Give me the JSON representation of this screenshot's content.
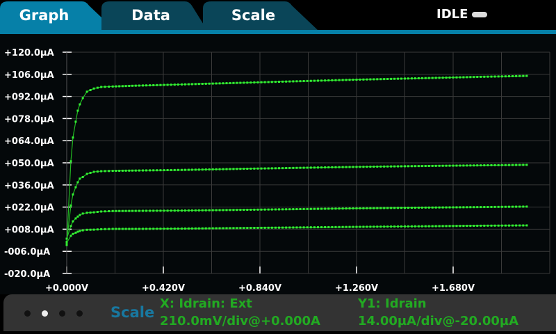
{
  "tabs": [
    {
      "label": "Graph",
      "active": true
    },
    {
      "label": "Data",
      "active": false
    },
    {
      "label": "Scale",
      "active": false
    }
  ],
  "status": {
    "label": "IDLE"
  },
  "colors": {
    "active_tab": "#0680a8",
    "inactive_tab": "#0a4558",
    "trace": "#33ee33",
    "scale_label": "#1878a0",
    "info_text": "#22aa22"
  },
  "swipe": {
    "pages": 4,
    "current": 2
  },
  "scale_panel": {
    "title": "Scale",
    "x_label": "X: Idrain: Ext",
    "x_scale": "210.0mV/div@+0.000A",
    "y_label": "Y1: Idrain",
    "y_scale": "14.00µA/div@-20.00µA"
  },
  "chart_data": {
    "type": "line",
    "grid": true,
    "xlim": [
      0,
      2.1
    ],
    "ylim": [
      -20,
      120
    ],
    "x_ticks": [
      "+0.000V",
      "+0.420V",
      "+0.840V",
      "+1.260V",
      "+1.680V"
    ],
    "x_tick_values": [
      0,
      0.42,
      0.84,
      1.26,
      1.68
    ],
    "y_ticks": [
      "+120.0µA",
      "+106.0µA",
      "+092.0µA",
      "+078.0µA",
      "+064.0µA",
      "+050.0µA",
      "+036.0µA",
      "+022.0µA",
      "+008.0µA",
      "-006.0µA",
      "-020.0µA"
    ],
    "y_tick_values": [
      120,
      106,
      92,
      78,
      64,
      50,
      36,
      22,
      8,
      -6,
      -20
    ],
    "x": [
      0,
      0.018,
      0.027,
      0.039,
      0.048,
      0.057,
      0.07,
      0.088,
      0.118,
      0.15,
      0.2,
      0.3,
      0.5,
      0.8,
      1.0,
      1.2,
      1.5,
      1.8,
      2.0
    ],
    "series": [
      {
        "values": [
          -2,
          51,
          66,
          76,
          83,
          87,
          91,
          95,
          97,
          98,
          98.3,
          98.8,
          99.6,
          100.8,
          101.6,
          102.4,
          103.4,
          104.4,
          105
        ]
      },
      {
        "values": [
          0,
          23,
          30,
          34.6,
          37.7,
          40,
          41,
          43,
          44.3,
          44.7,
          44.9,
          45.1,
          45.5,
          46.3,
          46.8,
          47.3,
          47.9,
          48.4,
          48.7
        ]
      },
      {
        "values": [
          2,
          10,
          13,
          14.8,
          16,
          17,
          17.9,
          18.4,
          18.7,
          19.2,
          19.5,
          19.6,
          19.8,
          20.3,
          20.7,
          21.1,
          21.6,
          22,
          22.3
        ]
      },
      {
        "values": [
          -0.6,
          3.8,
          5,
          5.8,
          6.4,
          6.9,
          7.3,
          7.6,
          7.7,
          8,
          8.2,
          8.2,
          8.4,
          8.8,
          9.1,
          9.4,
          9.8,
          10.2,
          10.4
        ]
      }
    ]
  }
}
